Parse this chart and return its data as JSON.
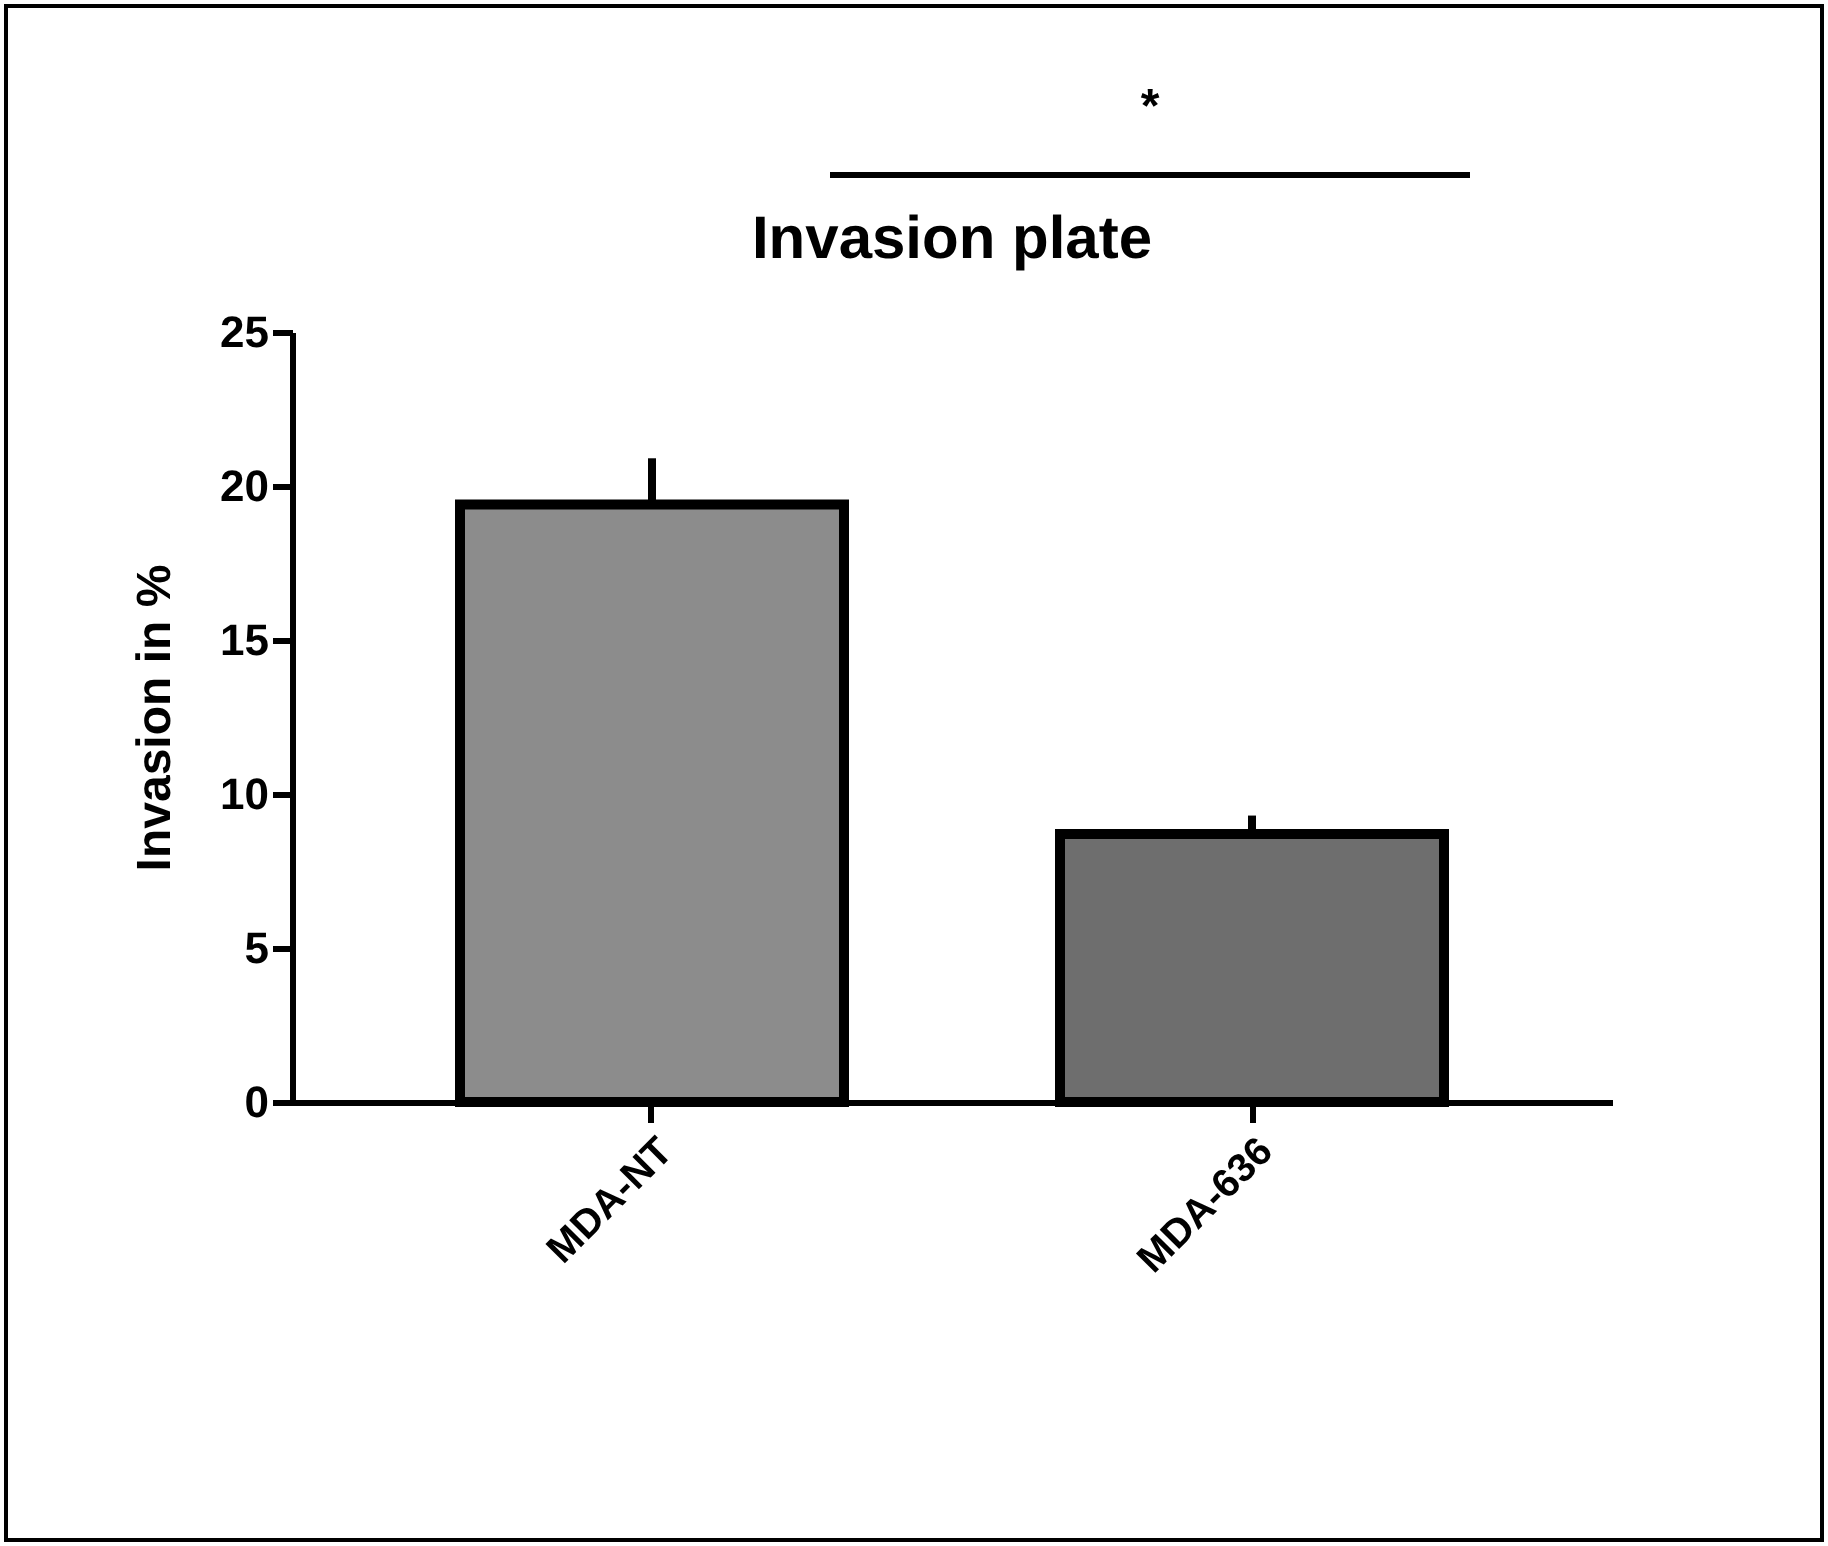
{
  "chart_data": {
    "type": "bar",
    "title": "Invasion plate",
    "ylabel": "Invasion in %",
    "categories": [
      "MDA-NT",
      "MDA-636"
    ],
    "values": [
      19.4,
      8.7
    ],
    "errors": [
      1.5,
      0.6
    ],
    "colors": [
      "#8c8c8c",
      "#6e6e6e"
    ],
    "ylim": [
      0,
      25
    ],
    "yticks": [
      0,
      5,
      10,
      15,
      20,
      25
    ],
    "grid": false,
    "annotations": [
      "*"
    ]
  }
}
